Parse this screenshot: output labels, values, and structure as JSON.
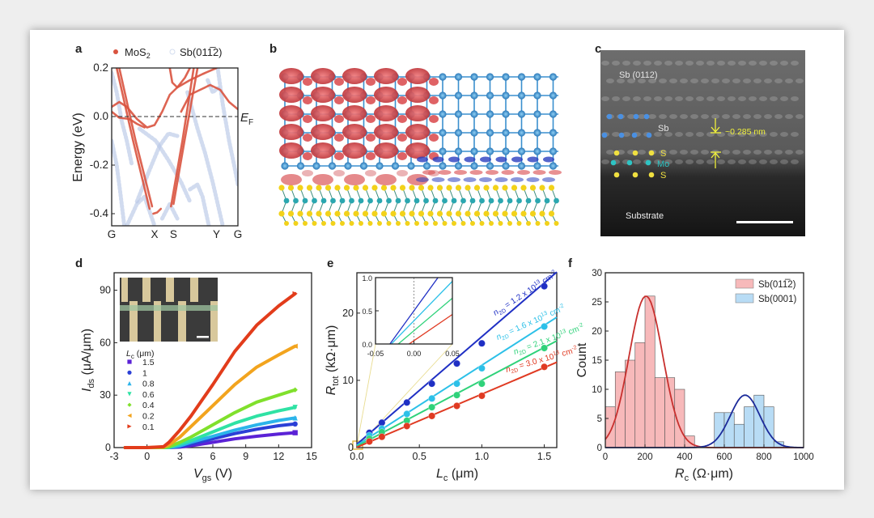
{
  "panel_labels": [
    "a",
    "b",
    "c",
    "d",
    "e",
    "f"
  ],
  "chart_data": [
    {
      "id": "a",
      "type": "line",
      "title": "",
      "ylabel": "Energy (eV)",
      "xlabel": "",
      "x_tick_labels": [
        {
          "k": 0,
          "label": "G"
        },
        {
          "k": 0.34,
          "label": "X"
        },
        {
          "k": 0.49,
          "label": "S"
        },
        {
          "k": 0.83,
          "label": "Y"
        },
        {
          "k": 1,
          "label": "G"
        }
      ],
      "y_ticks": [
        0.2,
        0.0,
        -0.2,
        -0.4
      ],
      "y_tick_labels": [
        "0.2",
        "0.0",
        "-0.2",
        "-0.4"
      ],
      "ylim": [
        -0.45,
        0.2
      ],
      "xlim": [
        0,
        1
      ],
      "fermi_level": {
        "energy": 0.0,
        "label": "E",
        "label_sub": "F",
        "style": "dashed"
      },
      "legend": [
        {
          "name": "MoS",
          "name_sub": "2",
          "color": "#d9533f"
        },
        {
          "name": "Sb(01̅2)",
          "name_display": "Sb(011̅2)",
          "color": "#b9c8e6"
        }
      ],
      "legend_placement": "top",
      "series": [
        {
          "name": "MoS2",
          "color": "#d9533f",
          "bands": [
            [
              [
                0,
                0.04
              ],
              [
                0.06,
                0.06
              ],
              [
                0.12,
                0.04
              ],
              [
                0.2,
                -0.01
              ],
              [
                0.28,
                -0.045
              ],
              [
                0.34,
                -0.035
              ],
              [
                0.4,
                0.02
              ],
              [
                0.46,
                0.09
              ],
              [
                0.52,
                0.12
              ],
              [
                0.62,
                0.15
              ],
              [
                0.72,
                0.175
              ],
              [
                0.83,
                0.2
              ]
            ],
            [
              [
                0,
                0.02
              ],
              [
                0.06,
                -0.005
              ],
              [
                0.14,
                -0.01
              ],
              [
                0.2,
                -0.03
              ],
              [
                0.26,
                -0.045
              ]
            ],
            [
              [
                0.04,
                0.2
              ],
              [
                0.17,
                -0.1
              ],
              [
                0.3,
                -0.38
              ]
            ],
            [
              [
                0.06,
                0.2
              ],
              [
                0.19,
                -0.1
              ],
              [
                0.32,
                -0.37
              ]
            ],
            [
              [
                0.47,
                -0.37
              ],
              [
                0.56,
                -0.1
              ],
              [
                0.65,
                0.2
              ]
            ],
            [
              [
                0.49,
                -0.36
              ],
              [
                0.58,
                -0.09
              ],
              [
                0.68,
                0.2
              ]
            ],
            [
              [
                0.55,
                0.02
              ],
              [
                0.62,
                0.09
              ],
              [
                0.7,
                0.11
              ],
              [
                0.78,
                0.13
              ],
              [
                0.86,
                0.11
              ],
              [
                0.93,
                0.06
              ],
              [
                1,
                0.03
              ]
            ],
            [
              [
                0.46,
                0.2
              ],
              [
                0.48,
                0.14
              ],
              [
                0.52,
                0.12
              ],
              [
                0.58,
                0.16
              ],
              [
                0.62,
                0.2
              ]
            ],
            [
              [
                0.33,
                -0.4
              ],
              [
                0.36,
                -0.395
              ],
              [
                0.39,
                -0.38
              ]
            ]
          ]
        },
        {
          "name": "Sb(01-12)",
          "color": "#b9c8e6",
          "bands": [
            [
              [
                0.22,
                -0.05
              ],
              [
                0.35,
                -0.1
              ],
              [
                0.45,
                -0.18
              ],
              [
                0.55,
                -0.27
              ],
              [
                0.62,
                -0.35
              ]
            ],
            [
              [
                0.2,
                -0.35
              ],
              [
                0.3,
                -0.22
              ],
              [
                0.38,
                -0.12
              ],
              [
                0.45,
                -0.07
              ],
              [
                0.52,
                -0.08
              ]
            ],
            [
              [
                0,
                -0.1
              ],
              [
                0.04,
                -0.2
              ],
              [
                0.07,
                -0.32
              ],
              [
                0.1,
                -0.45
              ]
            ],
            [
              [
                0.6,
                0.1
              ],
              [
                0.68,
                -0.05
              ],
              [
                0.74,
                -0.15
              ],
              [
                0.8,
                -0.27
              ],
              [
                0.88,
                -0.45
              ]
            ],
            [
              [
                0.84,
                0.2
              ],
              [
                0.88,
                0.05
              ],
              [
                0.93,
                -0.1
              ],
              [
                0.97,
                -0.2
              ],
              [
                1,
                -0.28
              ]
            ],
            [
              [
                0.62,
                -0.3
              ],
              [
                0.68,
                -0.28
              ],
              [
                0.72,
                -0.33
              ],
              [
                0.77,
                -0.45
              ]
            ],
            [
              [
                0.12,
                -0.45
              ],
              [
                0.2,
                -0.36
              ],
              [
                0.26,
                -0.33
              ],
              [
                0.34,
                -0.45
              ]
            ],
            [
              [
                0,
                0.18
              ],
              [
                0.04,
                0.1
              ],
              [
                0.08,
                -0.02
              ],
              [
                0.12,
                -0.1
              ],
              [
                0.16,
                -0.2
              ]
            ],
            [
              [
                0.4,
                -0.42
              ],
              [
                0.46,
                -0.36
              ],
              [
                0.52,
                -0.42
              ]
            ],
            [
              [
                0.76,
                0.15
              ],
              [
                0.8,
                0.1
              ],
              [
                0.85,
                0.12
              ]
            ]
          ]
        }
      ]
    },
    {
      "id": "d",
      "type": "line",
      "title": "",
      "xlabel": {
        "main": "V",
        "sub": "gs",
        "unit": " (V)"
      },
      "ylabel": {
        "main": "I",
        "sub": "ds",
        "unit": " (μA/μm)"
      },
      "xlim": [
        -3,
        15
      ],
      "ylim": [
        0,
        100
      ],
      "x_ticks": [
        -3,
        0,
        3,
        6,
        9,
        12,
        15
      ],
      "y_ticks": [
        0,
        30,
        60,
        90
      ],
      "legend_title": {
        "main": "L",
        "sub": "c",
        "unit": " (μm)"
      },
      "legend_placement": "left",
      "x": [
        -2,
        0,
        1.5,
        2,
        3,
        4,
        6,
        8,
        10,
        12,
        13.5
      ],
      "series": [
        {
          "name": "1.5",
          "marker": "square",
          "color": "#5b22d6",
          "values": [
            0,
            0,
            0,
            0,
            0.3,
            1,
            3,
            5,
            6.5,
            7.8,
            8.5
          ]
        },
        {
          "name": "1",
          "marker": "circle",
          "color": "#2b3fd6",
          "values": [
            0,
            0,
            0,
            0,
            0.5,
            2,
            5,
            8,
            10.5,
            12.5,
            13.5
          ]
        },
        {
          "name": "0.8",
          "marker": "triangle-up",
          "color": "#2cb4ea",
          "values": [
            0,
            0,
            0,
            0,
            1,
            3,
            6.5,
            10,
            13,
            15.5,
            17
          ]
        },
        {
          "name": "0.6",
          "marker": "triangle-down",
          "color": "#2fe2a4",
          "values": [
            0,
            0,
            0,
            0.2,
            2,
            4,
            9,
            14,
            18,
            21,
            23
          ]
        },
        {
          "name": "0.4",
          "marker": "diamond",
          "color": "#80e02c",
          "values": [
            0,
            0,
            0,
            0.5,
            3,
            6,
            13,
            20,
            26,
            30,
            33
          ]
        },
        {
          "name": "0.2",
          "marker": "triangle-left",
          "color": "#f2a41e",
          "values": [
            0,
            0,
            0.3,
            1.5,
            6,
            12,
            24,
            36,
            46,
            53,
            58
          ]
        },
        {
          "name": "0.1",
          "marker": "triangle-right",
          "color": "#e23c1b",
          "values": [
            0,
            0,
            0.5,
            3,
            10,
            18,
            36,
            55,
            70,
            81,
            88
          ]
        }
      ]
    },
    {
      "id": "e",
      "type": "scatter",
      "title": "",
      "xlabel": {
        "main": "L",
        "sub": "c",
        "unit": " (μm)"
      },
      "ylabel": {
        "main": "R",
        "sub": "tot",
        "unit": " (kΩ·μm)"
      },
      "xlim": [
        0,
        1.6
      ],
      "ylim": [
        0,
        26
      ],
      "x_ticks": [
        0,
        0.5,
        1.0,
        1.5
      ],
      "x_tick_labels": [
        "0.0",
        "0.5",
        "1.0",
        "1.5"
      ],
      "y_ticks": [
        0,
        10,
        20
      ],
      "y_tick_labels": [
        "0",
        "10",
        "20"
      ],
      "x": [
        0.1,
        0.2,
        0.4,
        0.6,
        0.8,
        1.0,
        1.5
      ],
      "label_parts": {
        "symbol": "n",
        "symbol_sub": "2D",
        "unit": " cm",
        "unit_exp": "-2",
        "times": " x 10",
        "exp": "13"
      },
      "series": [
        {
          "density": "1.2",
          "color": "#1f2fc4",
          "values": [
            2.2,
            3.7,
            6.7,
            9.5,
            12.5,
            15.5,
            24
          ],
          "fit": {
            "slope": 16.0,
            "intercept": 0.5
          }
        },
        {
          "density": "1.6",
          "color": "#2cc0e8",
          "values": [
            1.8,
            2.8,
            5.0,
            7.3,
            9.5,
            11.8,
            18
          ],
          "fit": {
            "slope": 11.9,
            "intercept": 0.35
          }
        },
        {
          "density": "2.1",
          "color": "#2fd27a",
          "values": [
            1.3,
            2.3,
            4.0,
            6.0,
            7.8,
            9.5,
            14.8
          ],
          "fit": {
            "slope": 9.8,
            "intercept": 0.2
          }
        },
        {
          "density": "3.0",
          "color": "#e03a22",
          "values": [
            0.9,
            1.6,
            3.2,
            4.7,
            6.2,
            7.7,
            12
          ],
          "fit": {
            "slope": 7.9,
            "intercept": 0.05
          }
        }
      ],
      "inset": {
        "xlim": [
          -0.05,
          0.05
        ],
        "ylim": [
          0,
          1.0
        ],
        "x_ticks": [
          -0.05,
          0.0,
          0.05
        ],
        "x_tick_labels": [
          "-0.05",
          "0.00",
          "0.05"
        ],
        "y_ticks": [
          0,
          0.5,
          1.0
        ],
        "y_tick_labels": [
          "0.0",
          "0.5",
          "1.0"
        ],
        "zero_line": "dotted"
      }
    },
    {
      "id": "f",
      "type": "bar",
      "title": "",
      "xlabel": {
        "main": "R",
        "sub": "c",
        "unit": " (Ω·μm)"
      },
      "ylabel": "Count",
      "xlim": [
        0,
        1000
      ],
      "ylim": [
        0,
        30
      ],
      "x_ticks": [
        0,
        200,
        400,
        600,
        800,
        1000
      ],
      "y_ticks": [
        0,
        5,
        10,
        15,
        20,
        25,
        30
      ],
      "bin_width": 50,
      "legend_placement": "top-right",
      "series": [
        {
          "name": "Sb(011̅2)",
          "color": "#f7b9ba",
          "fit_color": "#c8302e",
          "bin_starts": [
            0,
            50,
            100,
            150,
            200,
            250,
            300,
            350,
            400
          ],
          "counts": [
            7,
            13,
            15,
            18,
            26,
            12,
            12,
            10,
            2
          ],
          "gaussian": {
            "peak": 26,
            "center": 205,
            "sigma": 85
          }
        },
        {
          "name": "Sb(0001)",
          "color": "#b8dcf5",
          "fit_color": "#1b2a9a",
          "bin_starts": [
            550,
            600,
            650,
            700,
            750,
            800,
            850
          ],
          "counts": [
            6,
            6,
            4,
            7,
            9,
            7,
            1
          ],
          "gaussian": {
            "peak": 9,
            "center": 705,
            "sigma": 75
          }
        }
      ]
    }
  ],
  "panel_c": {
    "title_label": "Sb (0112)",
    "sb_label": "Sb",
    "s_top_label": "S",
    "mo_label": "Mo",
    "s_bottom_label": "S",
    "spacing_label": "~0.285 nm",
    "substrate_label": "Substrate",
    "colors": {
      "sb": "#4a90e2",
      "s": "#f0e040",
      "mo": "#2ec4c4",
      "annotation": "#f2f23a"
    }
  },
  "panel_b": {
    "colors": {
      "sb_atom": "#3a8fcf",
      "charge_accum": "#d9464a",
      "charge_depl": "#2a3fbf",
      "s_atom": "#f2d21a",
      "mo_atom": "#2aa7b0"
    }
  }
}
